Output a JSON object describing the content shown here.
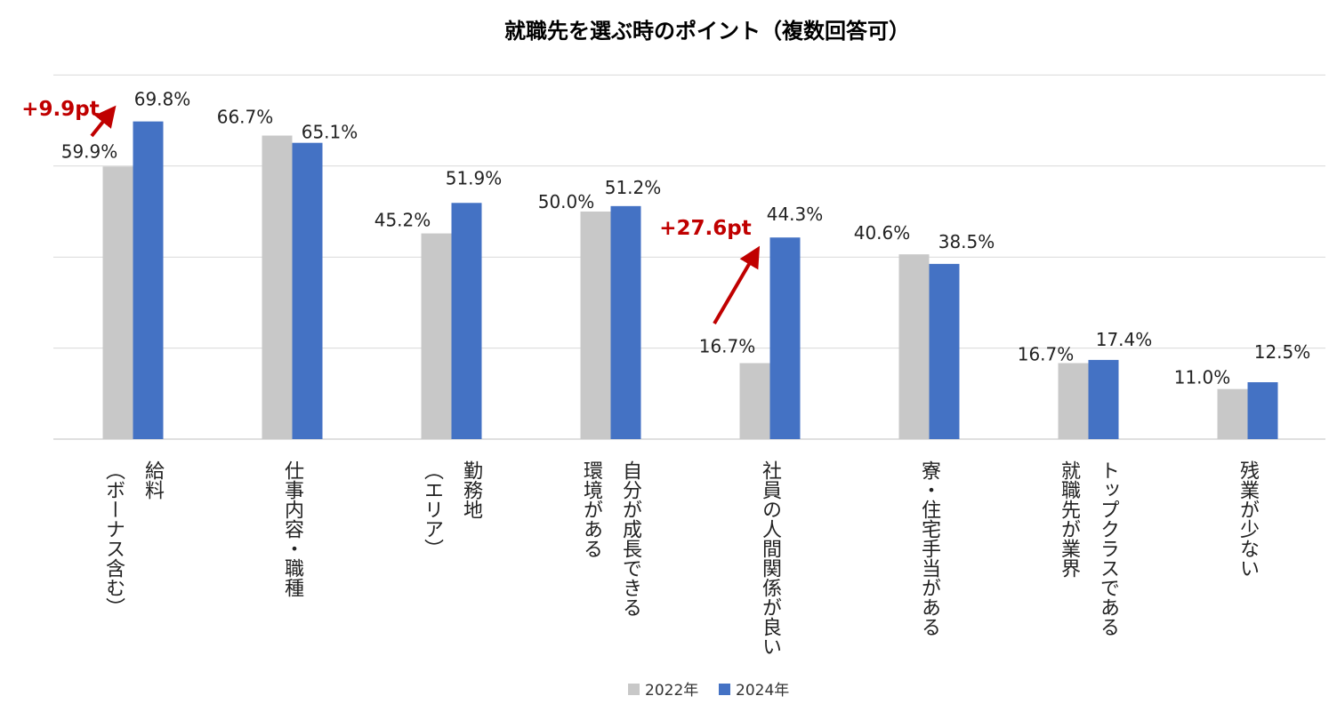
{
  "chart_data": {
    "type": "bar",
    "title": "就職先を選ぶ時のポイント（複数回答可）",
    "categories": [
      [
        "給料",
        "（ボーナス含む）"
      ],
      [
        "仕事内容・職種"
      ],
      [
        "勤務地",
        "（エリア）"
      ],
      [
        "自分が成長できる",
        "環境がある"
      ],
      [
        "社員の人間関係が良い"
      ],
      [
        "寮・住宅手当がある"
      ],
      [
        "トップクラスである",
        "就職先が業界"
      ],
      [
        "残業が少ない"
      ]
    ],
    "series": [
      {
        "name": "2022年",
        "color": "#c8c8c8",
        "values": [
          59.9,
          66.7,
          45.2,
          50.0,
          16.7,
          40.6,
          16.7,
          11.0
        ]
      },
      {
        "name": "2024年",
        "color": "#4472c4",
        "values": [
          69.8,
          65.1,
          51.9,
          51.2,
          44.3,
          38.5,
          17.4,
          12.5
        ]
      }
    ],
    "data_labels": {
      "2022": [
        "59.9%",
        "66.7%",
        "45.2%",
        "50.0%",
        "16.7%",
        "40.6%",
        "16.7%",
        "11.0%"
      ],
      "2024": [
        "69.8%",
        "65.1%",
        "51.9%",
        "51.2%",
        "44.3%",
        "38.5%",
        "17.4%",
        "12.5%"
      ]
    },
    "annotations": [
      {
        "text": "+9.9pt",
        "category_index": 0,
        "color": "#c00000"
      },
      {
        "text": "+27.6pt",
        "category_index": 4,
        "color": "#c00000"
      }
    ],
    "ylim": [
      0,
      80
    ],
    "gridlines": [
      0,
      20,
      40,
      60,
      80
    ],
    "legend_position": "bottom-center",
    "xlabel": "",
    "ylabel": ""
  }
}
